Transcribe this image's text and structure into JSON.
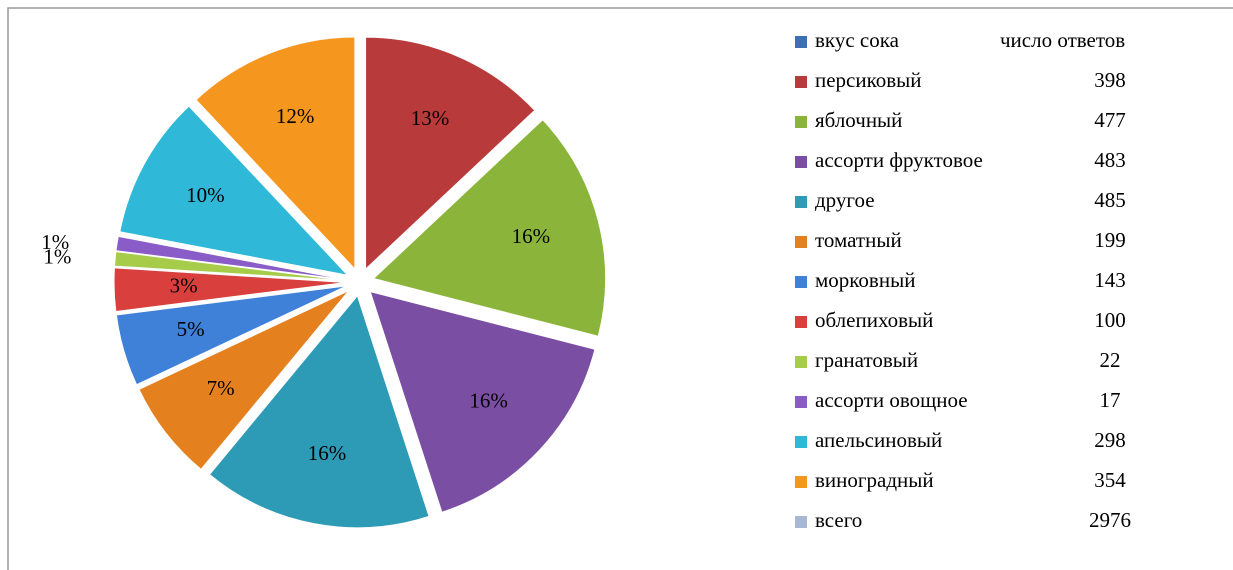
{
  "chart_data": {
    "type": "pie",
    "legend_header": [
      "вкус сока",
      "число ответов"
    ],
    "header_color": "#3c6fb5",
    "categories": [
      "персиковый",
      "яблочный",
      "ассорти фруктовое",
      "другое",
      "томатный",
      "морковный",
      "облепиховый",
      "гранатовый",
      "ассорти овощное",
      "апельсиновый",
      "виноградный",
      "всего"
    ],
    "counts": [
      398,
      477,
      483,
      485,
      199,
      143,
      100,
      22,
      17,
      298,
      354,
      2976
    ],
    "values": [
      13,
      16,
      16,
      16,
      7,
      5,
      3,
      1,
      1,
      10,
      12,
      null
    ],
    "colors": [
      "#b93a3a",
      "#8ab43a",
      "#7a4ea2",
      "#2d9ab6",
      "#e5801f",
      "#3f80d8",
      "#d9403d",
      "#a6cc4a",
      "#8a5cc7",
      "#2fb8d8",
      "#f5961e",
      "#a8b8d4"
    ]
  }
}
